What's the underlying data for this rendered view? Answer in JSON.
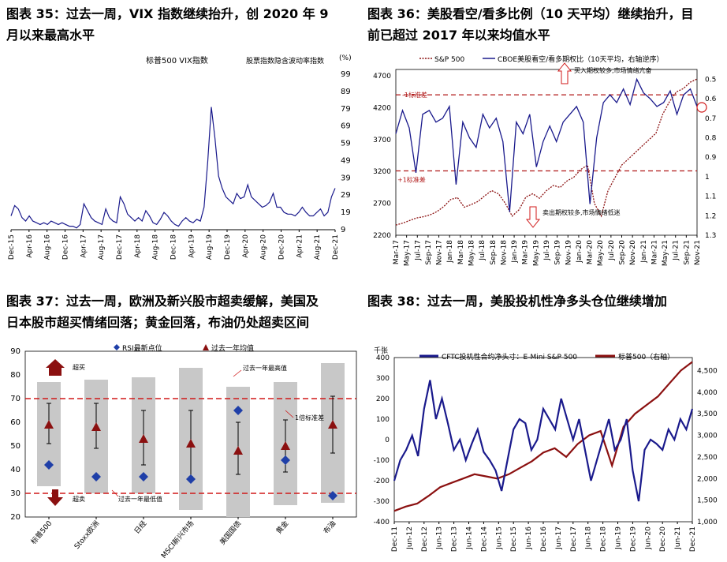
{
  "c35": {
    "title_line1": "图表 35：过去一周，VIX 指数继续抬升，创 2020 年 9",
    "title_line2": "月以来最高水平",
    "legend_left": "标普500 VIX指数",
    "legend_right": "股票指数隐含波动率指数",
    "unit": "(%)",
    "chart_data": {
      "type": "line",
      "y_ticks": [
        "99",
        "89",
        "79",
        "69",
        "59",
        "49",
        "39",
        "29",
        "19",
        "9"
      ],
      "x_ticks": [
        "Dec-15",
        "Apr-16",
        "Aug-16",
        "Dec-16",
        "Apr-17",
        "Aug-17",
        "Dec-17",
        "Apr-18",
        "Aug-18",
        "Dec-18",
        "Apr-19",
        "Aug-19",
        "Dec-19",
        "Apr-20",
        "Aug-20",
        "Dec-20",
        "Apr-21",
        "Aug-21",
        "Dec-21"
      ],
      "ylim": [
        9,
        99
      ],
      "series": [
        {
          "values": [
            17,
            23,
            21,
            16,
            14,
            17,
            14,
            13,
            12,
            13,
            12,
            14,
            13,
            12,
            13,
            12,
            11,
            11,
            10,
            12,
            24,
            20,
            16,
            14,
            13,
            12,
            21,
            16,
            14,
            13,
            28,
            24,
            18,
            16,
            14,
            16,
            14,
            20,
            17,
            13,
            12,
            15,
            19,
            17,
            14,
            12,
            11,
            14,
            16,
            14,
            13,
            15,
            14,
            22,
            48,
            80,
            62,
            40,
            33,
            28,
            26,
            24,
            30,
            27,
            28,
            35,
            28,
            26,
            24,
            22,
            23,
            25,
            30,
            22,
            22,
            19,
            18,
            18,
            17,
            19,
            22,
            19,
            17,
            17,
            19,
            21,
            17,
            19,
            28,
            33
          ]
        }
      ]
    }
  },
  "c36": {
    "title_line1": "图表 36：美股看空/看多比例（10 天平均）继续抬升，目",
    "title_line2": "前已超过 2017 年以来均值水平",
    "legend_sp": "S&P 500",
    "legend_ratio": "CBOE美股看空/看多期权比（10天平均，右轴逆序）",
    "ann_top": "买入期权较多,市场情绪亢奋",
    "ann_bottom": "卖出期权较多,市场情绪低迷",
    "label_minus": "-1标准差",
    "label_plus": "+1标准差",
    "chart_data": {
      "type": "line",
      "y_left_ticks": [
        "4700",
        "4200",
        "3700",
        "3200",
        "2700",
        "2200"
      ],
      "y_right_ticks": [
        "0.5",
        "0.6",
        "0.7",
        "0.8",
        "0.9",
        "1",
        "1.1",
        "1.2",
        "1.3"
      ],
      "x_ticks": [
        "Mar-17",
        "May-17",
        "Jul-17",
        "Sep-17",
        "Nov-17",
        "Jan-18",
        "Mar-18",
        "May-18",
        "Jul-18",
        "Sep-18",
        "Nov-18",
        "Jan-19",
        "Mar-19",
        "May-19",
        "Jul-19",
        "Sep-19",
        "Nov-19",
        "Jan-20",
        "Mar-20",
        "May-20",
        "Jul-20",
        "Sep-20",
        "Nov-20",
        "Jan-21",
        "Mar-21",
        "May-21",
        "Jul-21",
        "Sep-21",
        "Nov-21"
      ],
      "ylim_left": [
        2200,
        4800
      ],
      "ylim_right_inverted": [
        0.45,
        1.3
      ],
      "sp500": [
        2360,
        2390,
        2430,
        2470,
        2490,
        2520,
        2570,
        2650,
        2760,
        2790,
        2640,
        2680,
        2730,
        2820,
        2900,
        2850,
        2700,
        2500,
        2600,
        2800,
        2850,
        2780,
        2900,
        2980,
        2950,
        3050,
        3110,
        3230,
        3300,
        2700,
        2500,
        2900,
        3100,
        3300,
        3400,
        3500,
        3600,
        3700,
        3800,
        4100,
        4300,
        4450,
        4500,
        4600,
        4650
      ],
      "put_call": [
        0.78,
        0.66,
        0.75,
        0.98,
        0.68,
        0.66,
        0.72,
        0.7,
        0.64,
        1.04,
        0.72,
        0.8,
        0.85,
        0.68,
        0.75,
        0.7,
        0.82,
        1.18,
        0.72,
        0.78,
        0.68,
        0.95,
        0.82,
        0.74,
        0.82,
        0.72,
        0.68,
        0.64,
        0.72,
        1.14,
        0.8,
        0.62,
        0.58,
        0.62,
        0.55,
        0.63,
        0.5,
        0.57,
        0.6,
        0.64,
        0.62,
        0.56,
        0.68,
        0.58,
        0.55,
        0.64
      ],
      "minus_1sd": 0.58,
      "plus_1sd": 0.97
    }
  },
  "c37": {
    "title_line1": "图表 37：过去一周，欧洲及新兴股市超卖缓解，美国及",
    "title_line2": "日本股市超买情绪回落；黄金回落，布油仍处超卖区间",
    "legend_rsi": "RSI最新点位",
    "legend_avg": "过去一年均值",
    "label_overbought": "超买",
    "label_oversold": "超卖",
    "label_year_high": "过去一年最高值",
    "label_year_low": "过去一年最低值",
    "label_sd": "1倍标准差",
    "chart_data": {
      "type": "bar",
      "y_ticks": [
        "90",
        "80",
        "70",
        "60",
        "50",
        "40",
        "30",
        "20"
      ],
      "ylim": [
        20,
        90
      ],
      "categories": [
        "标普500",
        "Stoxx欧洲",
        "日经",
        "MSCI新兴市场",
        "美国国债",
        "黄金",
        "布油"
      ],
      "year_high": [
        77,
        78,
        79,
        83,
        75,
        77,
        85
      ],
      "year_low": [
        33,
        30,
        30,
        23,
        20,
        25,
        26
      ],
      "rsi_latest": [
        42,
        37,
        37,
        36,
        65,
        44,
        29
      ],
      "year_avg": [
        59,
        58,
        53,
        51,
        48,
        50,
        59
      ],
      "sd_upper": [
        68,
        68,
        65,
        65,
        60,
        61,
        71
      ],
      "sd_lower": [
        51,
        49,
        42,
        37,
        38,
        39,
        47
      ],
      "overbought_line": 70,
      "oversold_line": 30
    }
  },
  "c38": {
    "title": "图表 38：过去一周，美股投机性净多头仓位继续增加",
    "unit": "千张",
    "legend_cftc": "CFTC投机性合约净头寸：E-Mini S&P 500",
    "legend_sp": "标普500（右轴）",
    "color_cftc": "#1a1a8c",
    "color_sp": "#8b1010",
    "chart_data": {
      "type": "line",
      "y_left_ticks": [
        "400",
        "300",
        "200",
        "100",
        "0",
        "-100",
        "-200",
        "-300",
        "-400"
      ],
      "y_right_ticks": [
        "4,500",
        "4,000",
        "3,500",
        "3,000",
        "2,500",
        "2,000",
        "1,500",
        "1,000"
      ],
      "x_ticks": [
        "Dec-11",
        "Jun-12",
        "Dec-12",
        "Jun-13",
        "Dec-13",
        "Jun-14",
        "Dec-14",
        "Jun-15",
        "Dec-15",
        "Jun-16",
        "Dec-16",
        "Jun-17",
        "Dec-17",
        "Jun-18",
        "Dec-18",
        "Jun-19",
        "Dec-19",
        "Jun-20",
        "Dec-20",
        "Jun-21",
        "Dec-21"
      ],
      "ylim_left": [
        -400,
        400
      ],
      "ylim_right": [
        1000,
        4800
      ],
      "cftc": [
        -200,
        -100,
        -50,
        20,
        -80,
        150,
        290,
        100,
        200,
        80,
        -50,
        0,
        -100,
        -20,
        50,
        -60,
        -100,
        -150,
        -250,
        -100,
        50,
        100,
        80,
        -50,
        0,
        150,
        100,
        50,
        200,
        100,
        0,
        100,
        -50,
        -200,
        -100,
        0,
        100,
        -50,
        0,
        100,
        -150,
        -300,
        -50,
        0,
        -20,
        -50,
        50,
        0,
        100,
        50,
        150
      ],
      "sp500": [
        1250,
        1350,
        1420,
        1600,
        1800,
        1900,
        2000,
        2100,
        2050,
        2000,
        2100,
        2250,
        2400,
        2600,
        2700,
        2500,
        2800,
        3000,
        3100,
        2300,
        3200,
        3500,
        3700,
        3900,
        4200,
        4500,
        4700
      ]
    }
  }
}
